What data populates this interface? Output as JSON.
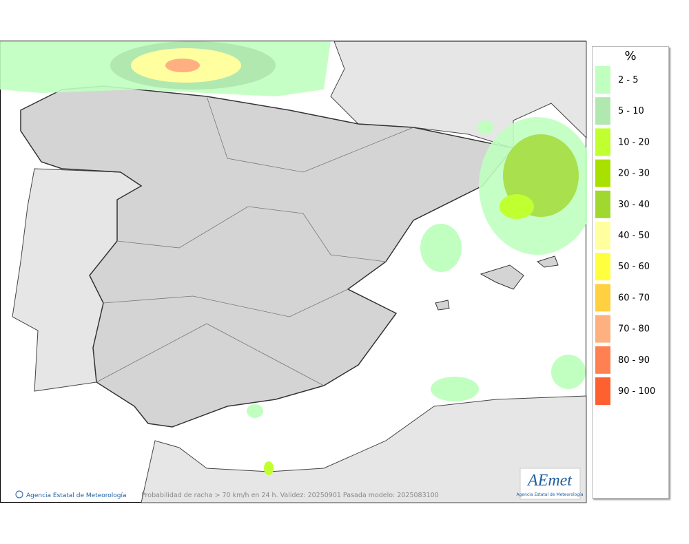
{
  "map": {
    "legend": {
      "title": "%",
      "items": [
        {
          "label": "2 - 5",
          "color": "#c0ffc0"
        },
        {
          "label": "5 - 10",
          "color": "#b0e8b0"
        },
        {
          "label": "10 - 20",
          "color": "#c0ff30"
        },
        {
          "label": "20 - 30",
          "color": "#a8e000"
        },
        {
          "label": "30 - 40",
          "color": "#a0d830"
        },
        {
          "label": "40 - 50",
          "color": "#ffffa0"
        },
        {
          "label": "50 - 60",
          "color": "#ffff40"
        },
        {
          "label": "60 - 70",
          "color": "#ffd040"
        },
        {
          "label": "70 - 80",
          "color": "#ffb080"
        },
        {
          "label": "80 - 90",
          "color": "#ff8050"
        },
        {
          "label": "90 - 100",
          "color": "#ff6030"
        }
      ]
    },
    "footer": {
      "credit": "Agencia Estatal de Meteorología",
      "caption": "Probabilidad de racha > 70 km/h en 24 h. Validez: 20250901 Pasada modelo: 2025083100"
    },
    "logo": {
      "name": "AEmet",
      "subtitle": "Agencia Estatal de Meteorología"
    }
  }
}
